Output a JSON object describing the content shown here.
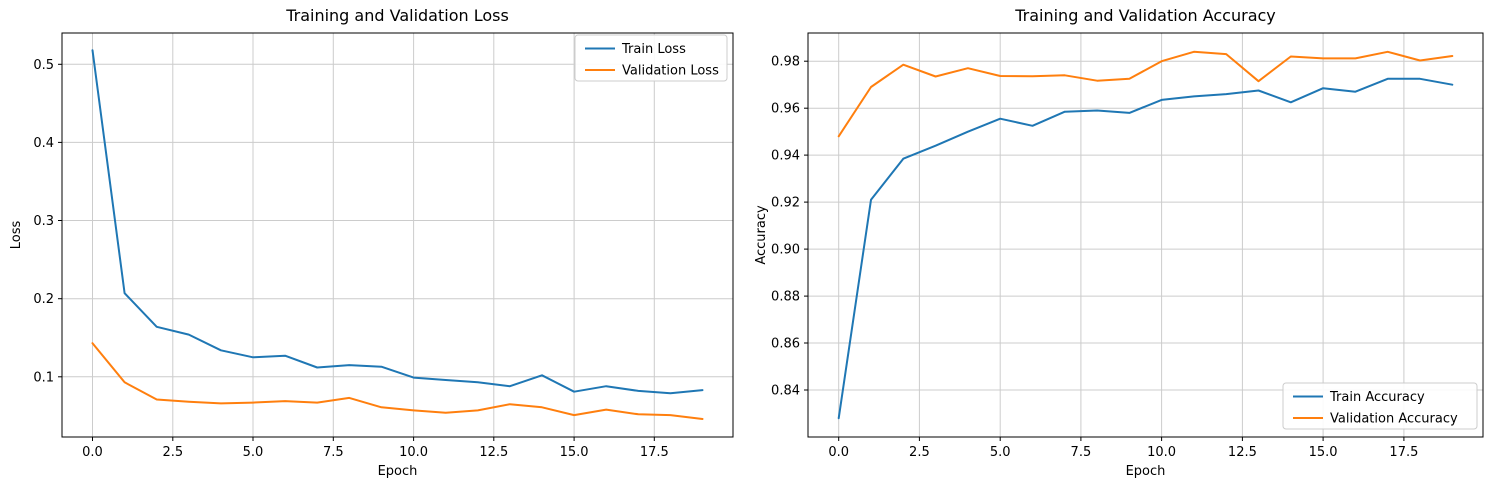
{
  "figure": {
    "background": "#ffffff",
    "grid_color": "#cccccc",
    "spine_color": "#000000",
    "text_color": "#000000",
    "legend_border_color": "#cccccc",
    "accent_colors": {
      "train": "#1f77b4",
      "validation": "#ff7f0e"
    }
  },
  "chart_data": [
    {
      "type": "line",
      "title": "Training and Validation Loss",
      "xlabel": "Epoch",
      "ylabel": "Loss",
      "xlim": [
        -0.95,
        19.95
      ],
      "ylim": [
        0.023,
        0.54
      ],
      "grid": true,
      "legend_position": "upper right",
      "xticks": {
        "values": [
          0,
          2.5,
          5,
          7.5,
          10,
          12.5,
          15,
          17.5
        ],
        "labels": [
          "0.0",
          "2.5",
          "5.0",
          "7.5",
          "10.0",
          "12.5",
          "15.0",
          "17.5"
        ]
      },
      "yticks": {
        "values": [
          0.1,
          0.2,
          0.3,
          0.4,
          0.5
        ],
        "labels": [
          "0.1",
          "0.2",
          "0.3",
          "0.4",
          "0.5"
        ]
      },
      "x": [
        0,
        1,
        2,
        3,
        4,
        5,
        6,
        7,
        8,
        9,
        10,
        11,
        12,
        13,
        14,
        15,
        16,
        17,
        18,
        19
      ],
      "series": [
        {
          "name": "Train Loss",
          "color": "#1f77b4",
          "values": [
            0.518,
            0.207,
            0.164,
            0.154,
            0.134,
            0.125,
            0.127,
            0.112,
            0.115,
            0.113,
            0.099,
            0.096,
            0.093,
            0.088,
            0.102,
            0.081,
            0.088,
            0.082,
            0.079,
            0.083
          ]
        },
        {
          "name": "Validation Loss",
          "color": "#ff7f0e",
          "values": [
            0.143,
            0.093,
            0.071,
            0.068,
            0.066,
            0.067,
            0.069,
            0.067,
            0.073,
            0.061,
            0.057,
            0.054,
            0.057,
            0.065,
            0.061,
            0.051,
            0.058,
            0.052,
            0.051,
            0.046
          ]
        }
      ]
    },
    {
      "type": "line",
      "title": "Training and Validation Accuracy",
      "xlabel": "Epoch",
      "ylabel": "Accuracy",
      "xlim": [
        -0.95,
        19.95
      ],
      "ylim": [
        0.82,
        0.992
      ],
      "grid": true,
      "legend_position": "lower right",
      "xticks": {
        "values": [
          0,
          2.5,
          5,
          7.5,
          10,
          12.5,
          15,
          17.5
        ],
        "labels": [
          "0.0",
          "2.5",
          "5.0",
          "7.5",
          "10.0",
          "12.5",
          "15.0",
          "17.5"
        ]
      },
      "yticks": {
        "values": [
          0.84,
          0.86,
          0.88,
          0.9,
          0.92,
          0.94,
          0.96,
          0.98
        ],
        "labels": [
          "0.84",
          "0.86",
          "0.88",
          "0.90",
          "0.92",
          "0.94",
          "0.96",
          "0.98"
        ]
      },
      "x": [
        0,
        1,
        2,
        3,
        4,
        5,
        6,
        7,
        8,
        9,
        10,
        11,
        12,
        13,
        14,
        15,
        16,
        17,
        18,
        19
      ],
      "series": [
        {
          "name": "Train Accuracy",
          "color": "#1f77b4",
          "values": [
            0.828,
            0.921,
            0.9385,
            0.944,
            0.95,
            0.9555,
            0.9525,
            0.9585,
            0.959,
            0.958,
            0.9635,
            0.965,
            0.966,
            0.9675,
            0.9625,
            0.9685,
            0.967,
            0.9725,
            0.9725,
            0.97
          ]
        },
        {
          "name": "Validation Accuracy",
          "color": "#ff7f0e",
          "values": [
            0.948,
            0.969,
            0.9785,
            0.9735,
            0.977,
            0.9737,
            0.9736,
            0.974,
            0.9717,
            0.9725,
            0.98,
            0.984,
            0.983,
            0.9715,
            0.982,
            0.9812,
            0.9812,
            0.984,
            0.9803,
            0.9822
          ]
        }
      ]
    }
  ]
}
